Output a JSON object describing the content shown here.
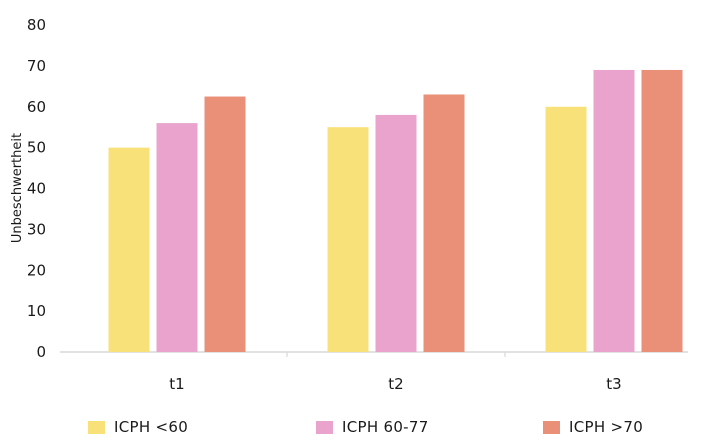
{
  "chart_data": {
    "type": "bar",
    "categories": [
      "t1",
      "t2",
      "t3"
    ],
    "series": [
      {
        "name": "ICPH <60",
        "values": [
          50,
          55,
          60
        ],
        "color": "#f9e17a"
      },
      {
        "name": "ICPH 60-77",
        "values": [
          56,
          58,
          69
        ],
        "color": "#e9a3cc"
      },
      {
        "name": "ICPH >70",
        "values": [
          62.5,
          63,
          69
        ],
        "color": "#ea8f78"
      }
    ],
    "ylabel": "Unbeschwertheit",
    "xlabel": "",
    "ylim": [
      0,
      80
    ],
    "yticks": [
      0,
      10,
      20,
      30,
      40,
      50,
      60,
      70,
      80
    ],
    "grid": false,
    "legend_position": "bottom"
  }
}
